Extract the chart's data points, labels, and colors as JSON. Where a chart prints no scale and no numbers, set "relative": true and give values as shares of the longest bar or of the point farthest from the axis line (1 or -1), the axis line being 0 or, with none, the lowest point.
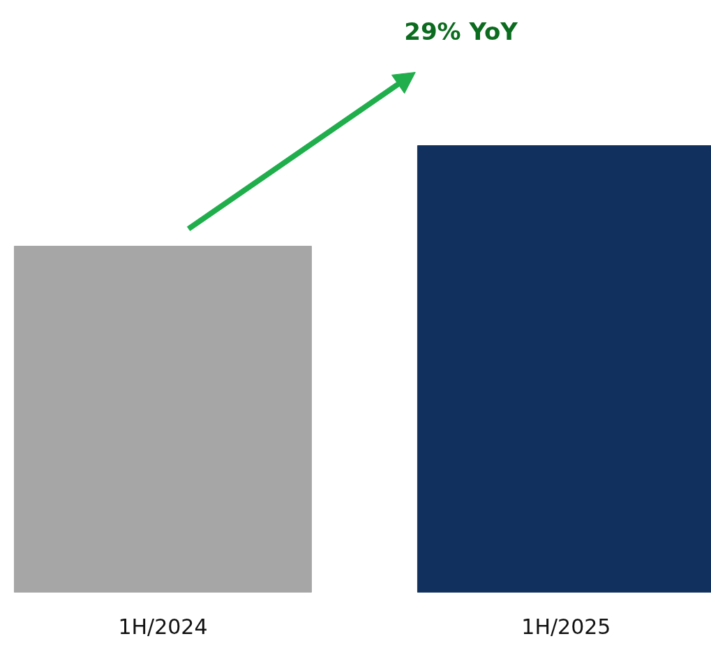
{
  "chart_data": {
    "type": "bar",
    "categories": [
      "1H/2024",
      "1H/2025"
    ],
    "values": [
      0.775,
      1
    ],
    "colors": [
      "#a6a6a6",
      "#11305e"
    ],
    "relative": true,
    "annotations": [
      "29% YoY"
    ]
  }
}
